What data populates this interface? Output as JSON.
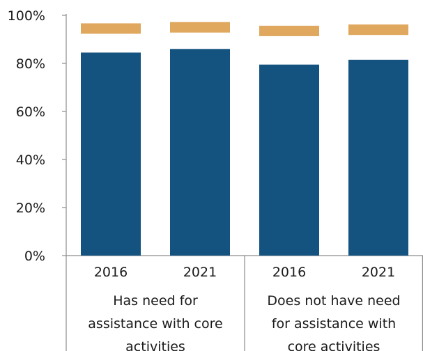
{
  "chart_data": {
    "type": "bar",
    "y_ticks": [
      "0%",
      "20%",
      "40%",
      "60%",
      "80%",
      "100%"
    ],
    "ylim": [
      0,
      100
    ],
    "categories": [
      "2016",
      "2021",
      "2016",
      "2021"
    ],
    "groups": [
      {
        "label_lines": [
          "Has need for",
          "assistance with core",
          "activities"
        ],
        "members": [
          0,
          1
        ]
      },
      {
        "label_lines": [
          "Does not have need",
          "for assistance with",
          "core activities"
        ],
        "members": [
          2,
          3
        ]
      }
    ],
    "series": [
      {
        "values": [
          84.5,
          86,
          79.5,
          81.5
        ],
        "color": "#14527f",
        "style": "bar"
      },
      {
        "values": [
          94.5,
          95,
          93.5,
          94
        ],
        "color": "#e0a75e",
        "style": "marker-band"
      }
    ],
    "grid": false,
    "legend": "none"
  }
}
